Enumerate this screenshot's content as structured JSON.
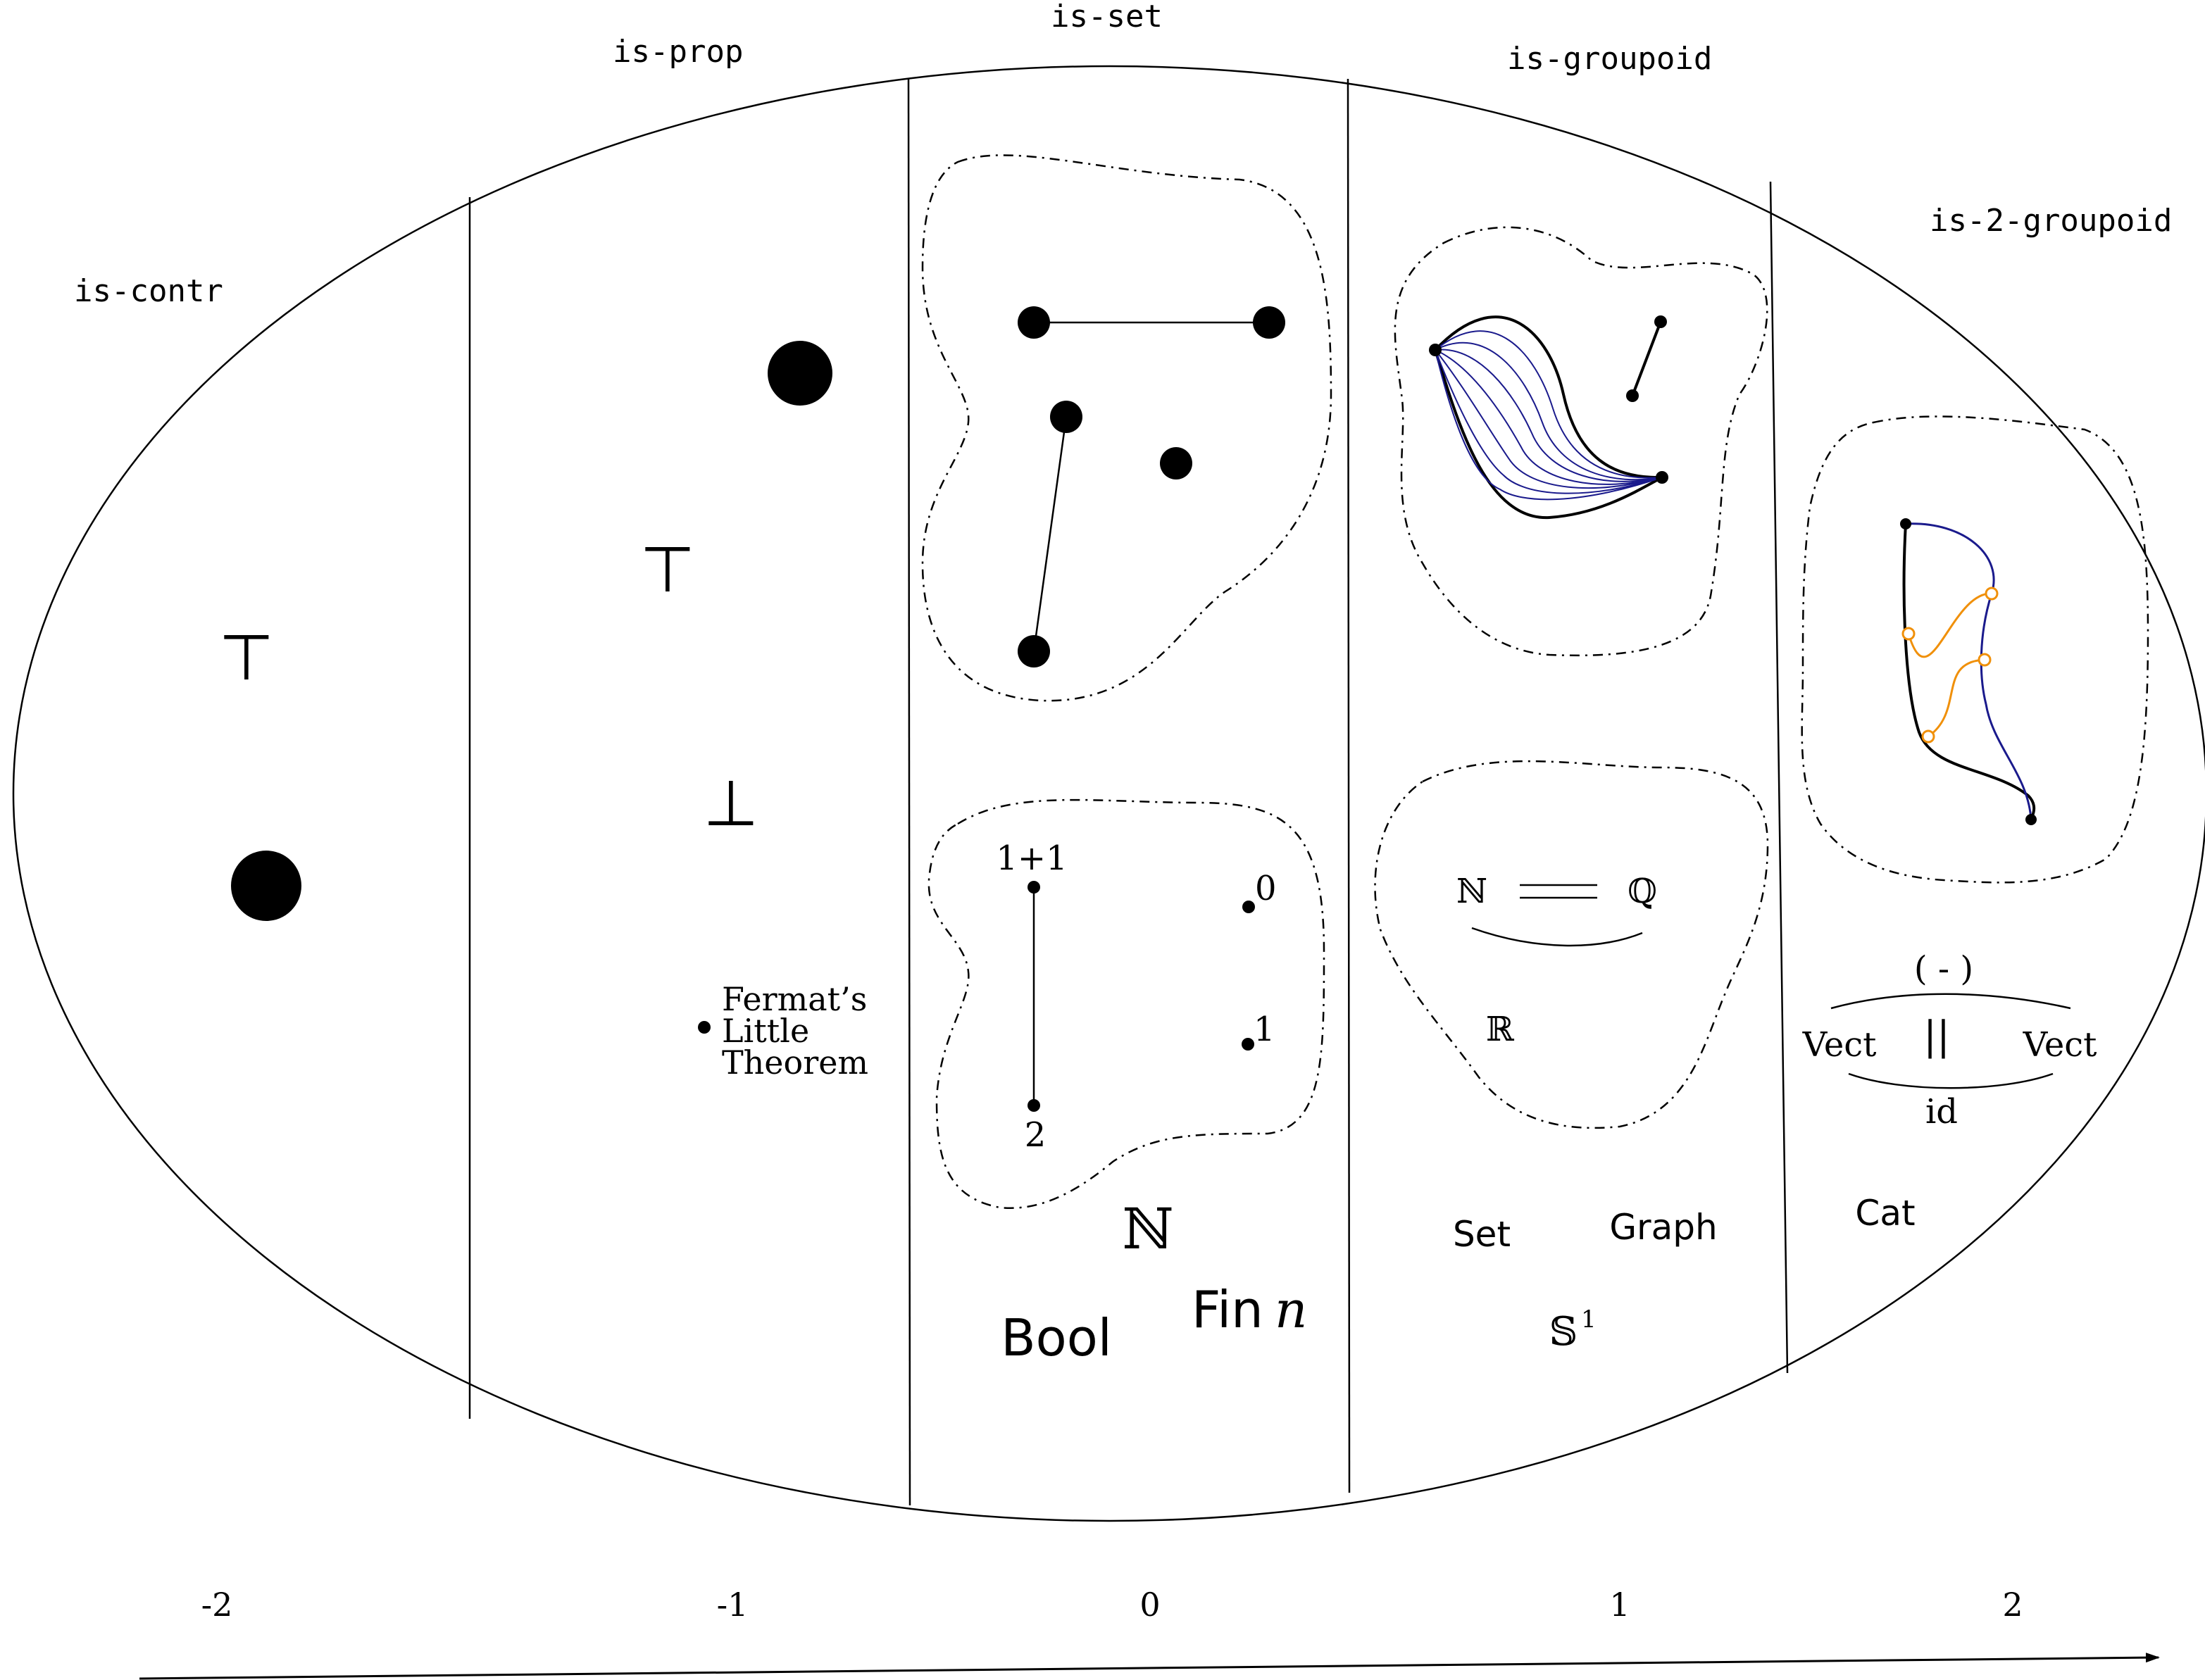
{
  "levels": {
    "contr": "is-contr",
    "prop": "is-prop",
    "set": "is-set",
    "groupoid": "is-groupoid",
    "two_groupoid": "is-2-groupoid"
  },
  "axis": {
    "ticks": [
      "-2",
      "-1",
      "0",
      "1",
      "2"
    ]
  },
  "contr": {
    "top": "⊤"
  },
  "prop": {
    "top": "⊤",
    "bottom": "⊥",
    "fermat": [
      "Fermat’s",
      "Little",
      "Theorem"
    ]
  },
  "set": {
    "one_plus_one": "1+1",
    "two": "2",
    "zero": "0",
    "one": "1",
    "nat": "ℕ",
    "bool": "Bool",
    "fin": "Fin",
    "fin_var": "n"
  },
  "groupoid": {
    "nat": "ℕ",
    "rat": "ℚ",
    "real": "ℝ",
    "set_label": "Set",
    "graph": "Graph",
    "circle": "𝕊",
    "circle_sup": "1"
  },
  "two_groupoid": {
    "dual": "( - )",
    "vect_left": "Vect",
    "vect_right": "Vect",
    "parallel": "||",
    "id": "id",
    "cat": "Cat"
  },
  "colors": {
    "ink": "#000000",
    "path_blue": "#1a1a8c",
    "homotopy_orange": "#f0900a"
  }
}
